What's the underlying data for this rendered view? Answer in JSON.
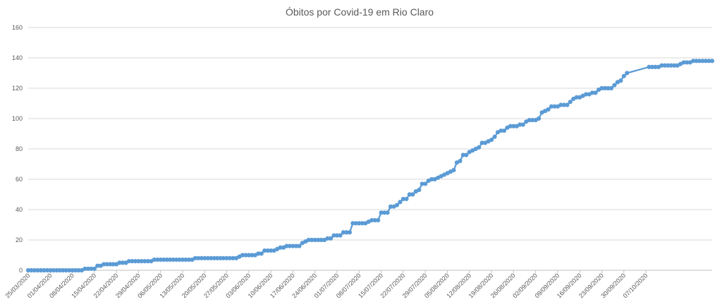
{
  "chart_data": {
    "type": "line",
    "title": "Óbitos por Covid-19 em Rio Claro",
    "xlabel": "",
    "ylabel": "",
    "ylim": [
      0,
      160
    ],
    "yticks": [
      0,
      20,
      40,
      60,
      80,
      100,
      120,
      140,
      160
    ],
    "grid": true,
    "legend": "none",
    "color": "#5b9bd5",
    "x_start": "25/03/2020",
    "xtick_labels": [
      "25/03/2020",
      "01/04/2020",
      "08/04/2020",
      "15/04/2020",
      "22/04/2020",
      "29/04/2020",
      "06/05/2020",
      "13/05/2020",
      "20/05/2020",
      "27/05/2020",
      "03/06/2020",
      "10/06/2020",
      "17/06/2020",
      "24/06/2020",
      "01/07/2020",
      "08/07/2020",
      "15/07/2020",
      "22/07/2020",
      "29/07/2020",
      "05/08/2020",
      "12/08/2020",
      "19/08/2020",
      "26/08/2020",
      "02/09/2020",
      "09/09/2020",
      "16/09/2020",
      "23/09/2020",
      "30/09/2020",
      "07/10/2020"
    ],
    "series": [
      {
        "values": [
          0,
          0,
          0,
          0,
          0,
          0,
          0,
          0,
          0,
          0,
          0,
          0,
          0,
          0,
          0,
          0,
          0,
          0,
          1,
          1,
          1,
          1,
          3,
          3,
          4,
          4,
          4,
          4,
          4,
          5,
          5,
          5,
          6,
          6,
          6,
          6,
          6,
          6,
          6,
          6,
          7,
          7,
          7,
          7,
          7,
          7,
          7,
          7,
          7,
          7,
          7,
          7,
          7,
          8,
          8,
          8,
          8,
          8,
          8,
          8,
          8,
          8,
          8,
          8,
          8,
          8,
          8,
          9,
          10,
          10,
          10,
          10,
          10,
          11,
          11,
          13,
          13,
          13,
          13,
          14,
          15,
          15,
          16,
          16,
          16,
          16,
          16,
          18,
          19,
          20,
          20,
          20,
          20,
          20,
          20,
          21,
          21,
          23,
          23,
          23,
          25,
          25,
          25,
          31,
          31,
          31,
          31,
          31,
          32,
          33,
          33,
          33,
          38,
          38,
          38,
          42,
          42,
          43,
          45,
          47,
          47,
          50,
          50,
          52,
          53,
          57,
          57,
          59,
          60,
          60,
          61,
          62,
          63,
          64,
          65,
          66,
          71,
          72,
          76,
          76,
          78,
          79,
          80,
          81,
          84,
          84,
          85,
          86,
          88,
          91,
          92,
          92,
          94,
          95,
          95,
          95,
          96,
          96,
          98,
          99,
          99,
          99,
          100,
          104,
          105,
          106,
          108,
          108,
          108,
          109,
          109,
          109,
          111,
          113,
          114,
          114,
          115,
          116,
          116,
          117,
          117,
          119,
          120,
          120,
          120,
          120,
          122,
          124,
          125,
          128,
          130,
          null,
          null,
          null,
          null,
          null,
          null,
          134,
          134,
          134,
          134,
          135,
          135,
          135,
          135,
          135,
          135,
          136,
          137,
          137,
          137,
          138,
          138,
          138,
          138,
          138,
          138,
          138
        ]
      }
    ]
  }
}
